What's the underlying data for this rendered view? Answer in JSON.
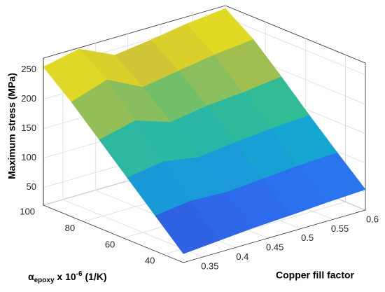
{
  "chart_data": {
    "type": "surface",
    "xlabel": "Copper fill factor",
    "ylabel": {
      "base": "α",
      "sub": "epoxy",
      "mid": " x 10",
      "sup": "-6",
      "end": " (1/K)"
    },
    "zlabel": "Maximum stress (MPa)",
    "x": [
      0.32,
      0.375,
      0.43,
      0.485,
      0.54,
      0.6
    ],
    "y": [
      30,
      44,
      58,
      72,
      86,
      100
    ],
    "z": [
      [
        35,
        40,
        45,
        48,
        52,
        55
      ],
      [
        80,
        88,
        85,
        90,
        95,
        98
      ],
      [
        125,
        135,
        125,
        132,
        138,
        142
      ],
      [
        170,
        185,
        165,
        175,
        180,
        188
      ],
      [
        215,
        235,
        205,
        215,
        225,
        232
      ],
      [
        255,
        268,
        240,
        248,
        258,
        265
      ]
    ],
    "xlim": [
      0.32,
      0.6
    ],
    "ylim": [
      30,
      100
    ],
    "zlim": [
      20,
      270
    ],
    "xticks": [
      0.35,
      0.4,
      0.45,
      0.5,
      0.55,
      0.6
    ],
    "yticks": [
      40,
      60,
      80,
      100
    ],
    "zticks": [
      50,
      100,
      150,
      200,
      250
    ],
    "grid": true,
    "colormap": [
      "#3e26a8",
      "#2c6ff0",
      "#14a8d0",
      "#38c08a",
      "#c9bd3a",
      "#f9f60f"
    ]
  }
}
